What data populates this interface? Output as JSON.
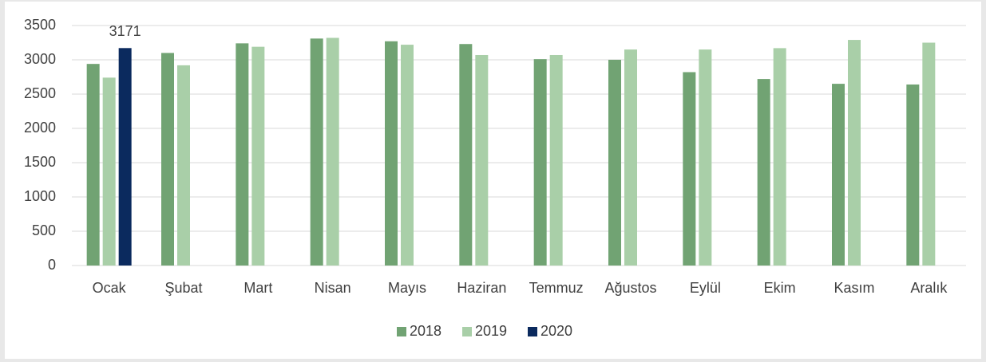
{
  "chart_data": {
    "type": "bar",
    "categories": [
      "Ocak",
      "Şubat",
      "Mart",
      "Nisan",
      "Mayıs",
      "Haziran",
      "Temmuz",
      "Ağustos",
      "Eylül",
      "Ekim",
      "Kasım",
      "Aralık"
    ],
    "series": [
      {
        "name": "2018",
        "color": "#71a373",
        "values": [
          2940,
          3100,
          3240,
          3310,
          3270,
          3230,
          3010,
          3000,
          2820,
          2720,
          2650,
          2640
        ]
      },
      {
        "name": "2019",
        "color": "#a9cfa8",
        "values": [
          2740,
          2920,
          3190,
          3320,
          3220,
          3070,
          3070,
          3150,
          3150,
          3170,
          3290,
          3250
        ]
      },
      {
        "name": "2020",
        "color": "#0b2a5e",
        "values": [
          3171,
          null,
          null,
          null,
          null,
          null,
          null,
          null,
          null,
          null,
          null,
          null
        ],
        "data_labels": true
      }
    ],
    "ylim": [
      0,
      3500
    ],
    "yticks": [
      0,
      500,
      1000,
      1500,
      2000,
      2500,
      3000,
      3500
    ],
    "grid": true,
    "legend": "bottom"
  }
}
